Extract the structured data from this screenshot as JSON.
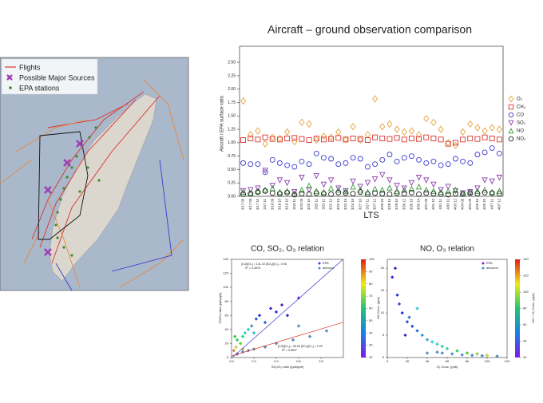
{
  "map": {
    "legend": [
      "Flights",
      "Possible Major Sources",
      "EPA stations"
    ]
  },
  "chart_data": [
    {
      "type": "marker",
      "title": "Aircraft – ground observation comparison",
      "x_label": "LTS",
      "y_label": "Aircraft / EPA surface ratio",
      "categories": [
        "3/17 08",
        "3/17 09",
        "3/17 10",
        "3/17 11",
        "3/18 09",
        "3/18 10",
        "3/19 10",
        "3/19 11",
        "3/20 09",
        "3/20 10",
        "3/20 11",
        "3/22 11",
        "3/22 12",
        "3/22 13",
        "3/24 15",
        "3/24 16",
        "3/27 10",
        "3/27 11",
        "3/27 12",
        "3/28 15",
        "3/28 16",
        "3/29 10",
        "3/30 12",
        "3/30 13",
        "3/30 14",
        "4/01 09",
        "4/01 10",
        "4/01 11",
        "4/03 11",
        "4/03 12",
        "4/04 08",
        "4/04 09",
        "4/05 16",
        "4/06 10",
        "4/07 11",
        "4/07 12"
      ],
      "ylim": [
        0,
        2.8
      ],
      "yticks": [
        {
          "value": 0,
          "label": "0.00"
        },
        {
          "value": 0.25,
          "label": "0.25"
        },
        {
          "value": 0.5,
          "label": "0.50"
        },
        {
          "value": 0.75,
          "label": "0.75"
        },
        {
          "value": 1,
          "label": "1.00"
        },
        {
          "value": 1.25,
          "label": "1.25"
        },
        {
          "value": 1.5,
          "label": "1.50"
        },
        {
          "value": 1.75,
          "label": "1.75"
        },
        {
          "value": 2,
          "label": "2.00"
        },
        {
          "value": 2.25,
          "label": "2.25"
        },
        {
          "value": 2.5,
          "label": "2.50"
        }
      ],
      "series": [
        {
          "name": "O₃",
          "color": "#e8a33c",
          "marker": "diamond",
          "values": [
            1.78,
            1.15,
            1.22,
            0.98,
            1.1,
            1.08,
            1.2,
            1.02,
            1.38,
            1.35,
            1.05,
            1.12,
            1.1,
            1.2,
            1.06,
            1.3,
            1.05,
            1.15,
            1.82,
            1.3,
            1.35,
            1.25,
            1.2,
            1.22,
            1.15,
            1.45,
            1.38,
            1.25,
            1.0,
            0.95,
            1.2,
            1.35,
            1.28,
            1.22,
            1.28,
            1.25
          ]
        },
        {
          "name": "CH₄",
          "color": "#d9342b",
          "marker": "square",
          "values": [
            1.05,
            1.08,
            1.06,
            1.1,
            1.07,
            1.06,
            1.08,
            1.09,
            1.07,
            1.05,
            1.08,
            1.06,
            1.07,
            1.09,
            1.06,
            1.08,
            1.07,
            1.05,
            1.1,
            1.08,
            1.07,
            1.09,
            1.06,
            1.08,
            1.07,
            1.1,
            1.08,
            1.06,
            0.98,
            1.0,
            1.06,
            1.08,
            1.07,
            1.1,
            1.08,
            1.06
          ]
        },
        {
          "name": "CO",
          "color": "#3a3acb",
          "marker": "circle",
          "values": [
            0.62,
            0.6,
            0.6,
            0.45,
            0.68,
            0.62,
            0.58,
            0.55,
            0.65,
            0.6,
            0.8,
            0.72,
            0.7,
            0.6,
            0.62,
            0.72,
            0.7,
            0.55,
            0.6,
            0.68,
            0.78,
            0.65,
            0.72,
            0.75,
            0.68,
            0.62,
            0.65,
            0.58,
            0.6,
            0.7,
            0.65,
            0.62,
            0.78,
            0.82,
            0.9,
            0.8
          ]
        },
        {
          "name": "SO₂",
          "color": "#8e3fae",
          "marker": "triangle-down",
          "values": [
            0.1,
            0.12,
            0.15,
            0.48,
            0.2,
            0.3,
            0.25,
            0.08,
            0.35,
            0.12,
            0.38,
            0.22,
            0.3,
            0.15,
            0.1,
            0.28,
            0.18,
            0.25,
            0.32,
            0.4,
            0.3,
            0.2,
            0.15,
            0.25,
            0.35,
            0.3,
            0.22,
            0.12,
            0.18,
            0.1,
            0.06,
            0.08,
            0.15,
            0.3,
            0.28,
            0.35
          ]
        },
        {
          "name": "NO",
          "color": "#3a9a3a",
          "marker": "triangle-up",
          "values": [
            0.08,
            0.06,
            0.1,
            0.12,
            0.15,
            0.08,
            0.1,
            0.05,
            0.12,
            0.2,
            0.1,
            0.08,
            0.15,
            0.12,
            0.1,
            0.18,
            0.12,
            0.08,
            0.14,
            0.12,
            0.16,
            0.1,
            0.12,
            0.14,
            0.18,
            0.12,
            0.1,
            0.08,
            0.1,
            0.12,
            0.06,
            0.08,
            0.1,
            0.12,
            0.08,
            0.1
          ]
        },
        {
          "name": "NO₂",
          "color": "#222222",
          "marker": "circle",
          "values": [
            0.04,
            0.05,
            0.08,
            0.1,
            0.06,
            0.05,
            0.07,
            0.03,
            0.05,
            0.04,
            0.06,
            0.05,
            0.04,
            0.07,
            0.06,
            0.05,
            0.08,
            0.04,
            0.06,
            0.05,
            0.04,
            0.06,
            0.05,
            0.07,
            0.04,
            0.06,
            0.05,
            0.04,
            0.03,
            0.05,
            0.04,
            0.06,
            0.05,
            0.07,
            0.06,
            0.05
          ]
        }
      ]
    },
    {
      "type": "scatter",
      "title": "CO, SO₂, O₃ relation",
      "x_label": "SO₂/O₃ ratio (ppb/ppb)",
      "y_label": "CO/O₃ ratio (ppb/ppb)",
      "xlim": [
        0,
        1
      ],
      "xticks": [
        {
          "value": 0,
          "label": "0.0"
        },
        0.2,
        0.4,
        0.6,
        0.8
      ],
      "ylim": [
        0,
        140
      ],
      "yticks": [
        0,
        20,
        40,
        60,
        80,
        100,
        120,
        140
      ],
      "clim": [
        20,
        100
      ],
      "cticks": [
        20,
        30,
        40,
        50,
        60,
        70,
        80,
        90,
        100
      ],
      "series": [
        {
          "name": "EPA",
          "x": [
            0.02,
            0.04,
            0.05,
            0.08,
            0.1,
            0.12,
            0.15,
            0.18,
            0.2,
            0.22,
            0.25,
            0.3,
            0.35,
            0.4,
            0.45,
            0.5,
            0.6,
            0.05,
            0.1,
            0.03
          ],
          "values": [
            10,
            15,
            25,
            20,
            30,
            35,
            40,
            45,
            35,
            55,
            60,
            50,
            70,
            65,
            75,
            60,
            85,
            5,
            12,
            30
          ],
          "c": [
            90,
            80,
            60,
            70,
            55,
            50,
            45,
            40,
            45,
            35,
            30,
            35,
            25,
            30,
            25,
            30,
            20,
            95,
            85,
            65
          ]
        },
        {
          "name": "airborne",
          "color": "#4a8fd0",
          "x": [
            0.05,
            0.1,
            0.15,
            0.2,
            0.3,
            0.4,
            0.55,
            0.7,
            0.85,
            0.6
          ],
          "values": [
            5,
            8,
            10,
            12,
            15,
            20,
            25,
            30,
            38,
            45
          ]
        }
      ],
      "fits": [
        {
          "slope": 141.33,
          "intercept": -0.95,
          "color": "#3a3acb",
          "label": "[CO]/[O₃] = 141.33 [SO₂]/[O₃] - 0.95",
          "r2": "R² = 0.4576"
        },
        {
          "slope": 48.05,
          "intercept": 2.25,
          "color": "#d9342b",
          "label": "[CO]/[O₃] = 48.05 [SO₂]/[O₃] + 2.25",
          "r2": "R² = 0.6847"
        }
      ]
    },
    {
      "type": "scatter",
      "title": "NO, O₃ relation",
      "x_label": "O₃ Conc. (ppb)",
      "y_label": "NO Conc. (ppb)",
      "c_label": "NO + O₃ Conc. (ppb)",
      "xlim": [
        0,
        120
      ],
      "xticks": [
        0,
        20,
        40,
        60,
        80,
        100,
        120
      ],
      "ylim": [
        0,
        22
      ],
      "yticks": [
        0,
        5,
        10,
        15,
        20
      ],
      "clim": [
        20,
        140
      ],
      "cticks": [
        20,
        40,
        60,
        80,
        100,
        120,
        140
      ],
      "series": [
        {
          "name": "EPA",
          "x": [
            5,
            10,
            12,
            15,
            20,
            22,
            25,
            30,
            35,
            40,
            45,
            50,
            55,
            60,
            70,
            80,
            90,
            100,
            30,
            18,
            8
          ],
          "values": [
            18,
            14,
            12,
            10,
            8,
            9,
            7,
            6,
            5,
            4,
            3.5,
            3,
            2.5,
            2,
            1.5,
            1,
            0.8,
            0.5,
            11,
            5,
            20
          ],
          "c": [
            30,
            35,
            40,
            35,
            40,
            45,
            40,
            45,
            50,
            55,
            60,
            65,
            70,
            70,
            80,
            90,
            100,
            110,
            60,
            30,
            32
          ]
        },
        {
          "name": "airborne",
          "color": "#4a8fd0",
          "x": [
            40,
            50,
            55,
            65,
            75,
            85,
            95,
            110
          ],
          "values": [
            1,
            1.2,
            1,
            0.8,
            0.6,
            0.5,
            0.4,
            0.3
          ]
        }
      ]
    }
  ]
}
